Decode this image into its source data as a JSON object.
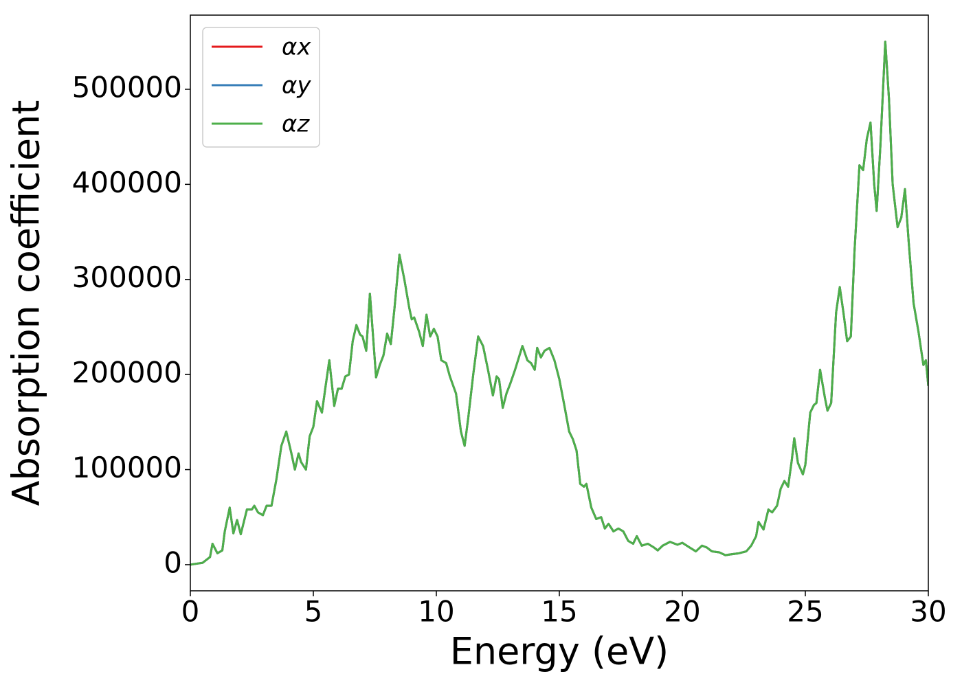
{
  "chart_data": {
    "type": "line",
    "xlabel": "Energy (eV)",
    "ylabel": "Absorption coefficient",
    "xlim": [
      0,
      30
    ],
    "ylim": [
      -27500,
      578000
    ],
    "xticks": [
      0,
      5,
      10,
      15,
      20,
      25,
      30
    ],
    "yticks": [
      0,
      100000,
      200000,
      300000,
      400000,
      500000
    ],
    "legend": "upper left",
    "grid": false,
    "x": [
      0,
      0.5,
      0.8,
      0.9,
      1.1,
      1.3,
      1.4,
      1.6,
      1.75,
      1.9,
      2.05,
      2.3,
      2.5,
      2.6,
      2.75,
      2.95,
      3.1,
      3.3,
      3.5,
      3.7,
      3.9,
      4.1,
      4.25,
      4.4,
      4.5,
      4.7,
      4.85,
      5.0,
      5.15,
      5.35,
      5.5,
      5.65,
      5.85,
      6.0,
      6.15,
      6.3,
      6.45,
      6.6,
      6.75,
      6.9,
      7.0,
      7.15,
      7.3,
      7.4,
      7.55,
      7.7,
      7.85,
      8.0,
      8.15,
      8.3,
      8.5,
      8.7,
      8.9,
      9.0,
      9.1,
      9.3,
      9.45,
      9.6,
      9.75,
      9.9,
      10.05,
      10.2,
      10.4,
      10.55,
      10.8,
      11.0,
      11.15,
      11.3,
      11.5,
      11.7,
      11.9,
      12.1,
      12.3,
      12.45,
      12.55,
      12.7,
      12.85,
      13.0,
      13.2,
      13.5,
      13.7,
      13.85,
      14.0,
      14.1,
      14.25,
      14.4,
      14.6,
      14.8,
      15.0,
      15.2,
      15.4,
      15.55,
      15.7,
      15.85,
      16.0,
      16.1,
      16.3,
      16.5,
      16.7,
      16.85,
      17.0,
      17.2,
      17.4,
      17.6,
      17.8,
      18.0,
      18.15,
      18.35,
      18.6,
      18.85,
      19.0,
      19.2,
      19.5,
      19.8,
      20.0,
      20.3,
      20.55,
      20.8,
      21.0,
      21.2,
      21.5,
      21.75,
      22.0,
      22.3,
      22.6,
      22.8,
      23.0,
      23.1,
      23.3,
      23.5,
      23.65,
      23.85,
      24.0,
      24.15,
      24.3,
      24.45,
      24.55,
      24.7,
      24.9,
      25.0,
      25.2,
      25.35,
      25.45,
      25.6,
      25.8,
      25.9,
      26.05,
      26.25,
      26.4,
      26.55,
      26.7,
      26.85,
      27.0,
      27.2,
      27.35,
      27.5,
      27.65,
      27.8,
      27.9,
      28.05,
      28.25,
      28.4,
      28.55,
      28.75,
      28.9,
      29.05,
      29.2,
      29.4,
      29.6,
      29.8,
      29.9,
      30.0
    ],
    "series": [
      {
        "name": "αx",
        "color": "#e41a1c",
        "values": [
          0,
          2000,
          8000,
          22000,
          12000,
          15000,
          35000,
          60000,
          33000,
          47000,
          32000,
          58000,
          58000,
          62000,
          55000,
          52000,
          62000,
          62000,
          90000,
          125000,
          140000,
          118000,
          100000,
          117000,
          108000,
          100000,
          135000,
          145000,
          172000,
          160000,
          188000,
          215000,
          167000,
          185000,
          185000,
          198000,
          200000,
          235000,
          252000,
          242000,
          240000,
          225000,
          285000,
          250000,
          197000,
          210000,
          220000,
          243000,
          232000,
          270000,
          326000,
          300000,
          270000,
          258000,
          260000,
          245000,
          230000,
          263000,
          240000,
          248000,
          240000,
          215000,
          212000,
          198000,
          180000,
          140000,
          125000,
          155000,
          200000,
          240000,
          230000,
          205000,
          178000,
          198000,
          195000,
          165000,
          180000,
          190000,
          205000,
          230000,
          215000,
          212000,
          205000,
          228000,
          218000,
          225000,
          228000,
          215000,
          195000,
          168000,
          140000,
          132000,
          120000,
          85000,
          82000,
          85000,
          60000,
          48000,
          50000,
          38000,
          43000,
          35000,
          38000,
          35000,
          25000,
          22000,
          30000,
          20000,
          22000,
          18000,
          15000,
          20000,
          24000,
          21000,
          23000,
          18000,
          14000,
          20000,
          18000,
          14000,
          13000,
          10000,
          11000,
          12000,
          14000,
          20000,
          30000,
          45000,
          37000,
          58000,
          55000,
          62000,
          80000,
          88000,
          82000,
          110000,
          133000,
          107000,
          95000,
          105000,
          160000,
          168000,
          170000,
          205000,
          175000,
          162000,
          170000,
          265000,
          292000,
          265000,
          235000,
          240000,
          330000,
          420000,
          415000,
          448000,
          465000,
          400000,
          372000,
          440000,
          550000,
          490000,
          400000,
          355000,
          365000,
          395000,
          340000,
          275000,
          245000,
          210000,
          215000,
          188000
        ]
      },
      {
        "name": "αy",
        "color": "#377eb8",
        "values": [
          0,
          2000,
          8000,
          22000,
          12000,
          15000,
          35000,
          60000,
          33000,
          47000,
          32000,
          58000,
          58000,
          62000,
          55000,
          52000,
          62000,
          62000,
          90000,
          125000,
          140000,
          118000,
          100000,
          117000,
          108000,
          100000,
          135000,
          145000,
          172000,
          160000,
          188000,
          215000,
          167000,
          185000,
          185000,
          198000,
          200000,
          235000,
          252000,
          242000,
          240000,
          225000,
          285000,
          250000,
          197000,
          210000,
          220000,
          243000,
          232000,
          270000,
          326000,
          300000,
          270000,
          258000,
          260000,
          245000,
          230000,
          263000,
          240000,
          248000,
          240000,
          215000,
          212000,
          198000,
          180000,
          140000,
          125000,
          155000,
          200000,
          240000,
          230000,
          205000,
          178000,
          198000,
          195000,
          165000,
          180000,
          190000,
          205000,
          230000,
          215000,
          212000,
          205000,
          228000,
          218000,
          225000,
          228000,
          215000,
          195000,
          168000,
          140000,
          132000,
          120000,
          85000,
          82000,
          85000,
          60000,
          48000,
          50000,
          38000,
          43000,
          35000,
          38000,
          35000,
          25000,
          22000,
          30000,
          20000,
          22000,
          18000,
          15000,
          20000,
          24000,
          21000,
          23000,
          18000,
          14000,
          20000,
          18000,
          14000,
          13000,
          10000,
          11000,
          12000,
          14000,
          20000,
          30000,
          45000,
          37000,
          58000,
          55000,
          62000,
          80000,
          88000,
          82000,
          110000,
          133000,
          107000,
          95000,
          105000,
          160000,
          168000,
          170000,
          205000,
          175000,
          162000,
          170000,
          265000,
          292000,
          265000,
          235000,
          240000,
          330000,
          420000,
          415000,
          448000,
          465000,
          400000,
          372000,
          440000,
          550000,
          490000,
          400000,
          355000,
          365000,
          395000,
          340000,
          275000,
          245000,
          210000,
          215000,
          188000
        ]
      },
      {
        "name": "αz",
        "color": "#4daf4a",
        "values": [
          0,
          2000,
          8000,
          22000,
          12000,
          15000,
          35000,
          60000,
          33000,
          47000,
          32000,
          58000,
          58000,
          62000,
          55000,
          52000,
          62000,
          62000,
          90000,
          125000,
          140000,
          118000,
          100000,
          117000,
          108000,
          100000,
          135000,
          145000,
          172000,
          160000,
          188000,
          215000,
          167000,
          185000,
          185000,
          198000,
          200000,
          235000,
          252000,
          242000,
          240000,
          225000,
          285000,
          250000,
          197000,
          210000,
          220000,
          243000,
          232000,
          270000,
          326000,
          300000,
          270000,
          258000,
          260000,
          245000,
          230000,
          263000,
          240000,
          248000,
          240000,
          215000,
          212000,
          198000,
          180000,
          140000,
          125000,
          155000,
          200000,
          240000,
          230000,
          205000,
          178000,
          198000,
          195000,
          165000,
          180000,
          190000,
          205000,
          230000,
          215000,
          212000,
          205000,
          228000,
          218000,
          225000,
          228000,
          215000,
          195000,
          168000,
          140000,
          132000,
          120000,
          85000,
          82000,
          85000,
          60000,
          48000,
          50000,
          38000,
          43000,
          35000,
          38000,
          35000,
          25000,
          22000,
          30000,
          20000,
          22000,
          18000,
          15000,
          20000,
          24000,
          21000,
          23000,
          18000,
          14000,
          20000,
          18000,
          14000,
          13000,
          10000,
          11000,
          12000,
          14000,
          20000,
          30000,
          45000,
          37000,
          58000,
          55000,
          62000,
          80000,
          88000,
          82000,
          110000,
          133000,
          107000,
          95000,
          105000,
          160000,
          168000,
          170000,
          205000,
          175000,
          162000,
          170000,
          265000,
          292000,
          265000,
          235000,
          240000,
          330000,
          420000,
          415000,
          448000,
          465000,
          400000,
          372000,
          440000,
          550000,
          490000,
          400000,
          355000,
          365000,
          395000,
          340000,
          275000,
          245000,
          210000,
          215000,
          188000
        ]
      }
    ]
  }
}
